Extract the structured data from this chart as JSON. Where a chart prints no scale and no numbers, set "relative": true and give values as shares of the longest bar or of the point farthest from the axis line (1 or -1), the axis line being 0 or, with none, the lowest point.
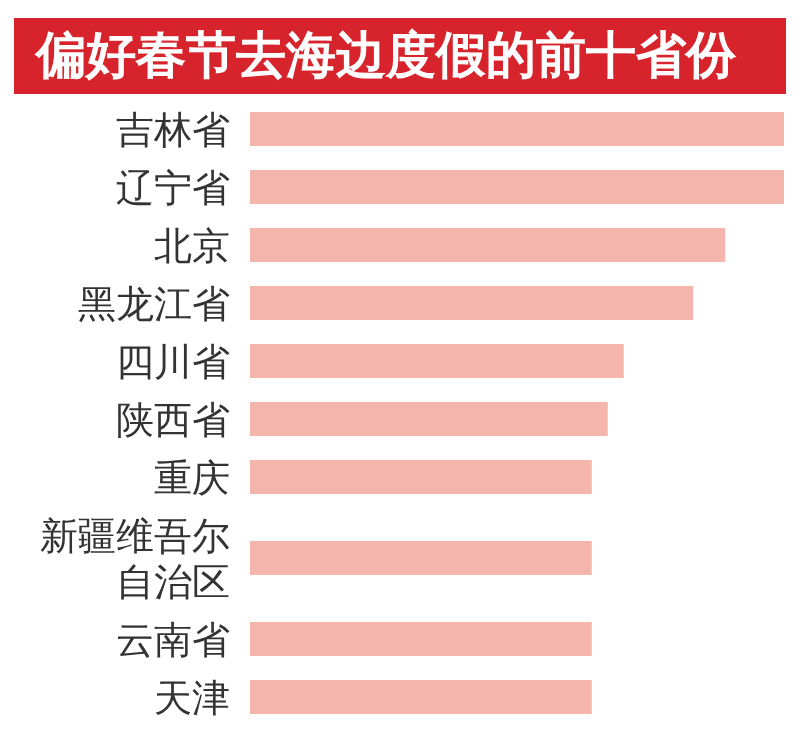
{
  "chart_data": {
    "type": "bar",
    "orientation": "horizontal",
    "relative": true,
    "title": "偏好春节去海边度假的前十省份",
    "categories": [
      "吉林省",
      "辽宁省",
      "北京",
      "黑龙江省",
      "四川省",
      "陕西省",
      "重庆",
      "新疆维吾尔自治区",
      "云南省",
      "天津"
    ],
    "values": [
      1,
      1,
      0.89,
      0.83,
      0.7,
      0.67,
      0.64,
      0.64,
      0.64,
      0.64
    ],
    "color": "#f4b5ad"
  }
}
